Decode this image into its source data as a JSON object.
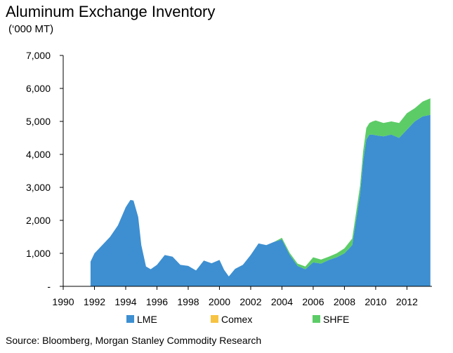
{
  "chart_data": {
    "type": "area",
    "stacked": true,
    "title": "Aluminum Exchange Inventory",
    "subtitle": "(‘000 MT)",
    "xlabel": "",
    "ylabel": "",
    "xlim": [
      1990,
      2013.6
    ],
    "ylim": [
      0,
      7000
    ],
    "x_ticks": [
      "1990",
      "1992",
      "1994",
      "1996",
      "1998",
      "2000",
      "2002",
      "2004",
      "2006",
      "2008",
      "2010",
      "2012"
    ],
    "y_ticks": [
      "-",
      "1,000",
      "2,000",
      "3,000",
      "4,000",
      "5,000",
      "6,000",
      "7,000"
    ],
    "grid": false,
    "legend_position": "bottom",
    "x": [
      1991.75,
      1992.0,
      1992.5,
      1993.0,
      1993.5,
      1994.0,
      1994.3,
      1994.5,
      1994.8,
      1995.0,
      1995.3,
      1995.6,
      1996.0,
      1996.5,
      1997.0,
      1997.5,
      1998.0,
      1998.5,
      1999.0,
      1999.5,
      2000.0,
      2000.3,
      2000.6,
      2001.0,
      2001.5,
      2002.0,
      2002.5,
      2003.0,
      2003.5,
      2004.0,
      2004.5,
      2005.0,
      2005.5,
      2006.0,
      2006.5,
      2007.0,
      2007.5,
      2008.0,
      2008.5,
      2009.0,
      2009.2,
      2009.4,
      2009.6,
      2009.8,
      2010.0,
      2010.5,
      2011.0,
      2011.5,
      2012.0,
      2012.5,
      2013.0,
      2013.5
    ],
    "series": [
      {
        "name": "LME",
        "color": "#3d8fd1",
        "values": [
          750,
          1000,
          1250,
          1500,
          1850,
          2400,
          2620,
          2600,
          2100,
          1250,
          600,
          520,
          650,
          950,
          900,
          650,
          620,
          480,
          780,
          700,
          800,
          500,
          300,
          530,
          650,
          950,
          1300,
          1250,
          1350,
          1420,
          950,
          620,
          520,
          730,
          690,
          800,
          880,
          1000,
          1250,
          2800,
          3800,
          4450,
          4600,
          4600,
          4580,
          4550,
          4600,
          4500,
          4750,
          5000,
          5150,
          5200
        ]
      },
      {
        "name": "Comex",
        "color": "#f6c342",
        "values": [
          0,
          0,
          0,
          0,
          0,
          0,
          0,
          0,
          0,
          0,
          0,
          0,
          0,
          0,
          0,
          0,
          0,
          0,
          0,
          0,
          0,
          0,
          0,
          0,
          0,
          0,
          0,
          0,
          0,
          0,
          0,
          0,
          0,
          0,
          0,
          0,
          0,
          0,
          0,
          0,
          0,
          0,
          0,
          0,
          0,
          0,
          0,
          0,
          0,
          0,
          0,
          0
        ]
      },
      {
        "name": "SHFE",
        "color": "#5ccc67",
        "values": [
          0,
          0,
          0,
          0,
          0,
          0,
          0,
          0,
          0,
          0,
          0,
          0,
          0,
          0,
          0,
          0,
          0,
          0,
          0,
          0,
          0,
          0,
          0,
          0,
          0,
          0,
          0,
          0,
          0,
          50,
          60,
          70,
          80,
          150,
          120,
          100,
          120,
          150,
          200,
          250,
          300,
          350,
          350,
          400,
          450,
          400,
          400,
          450,
          500,
          400,
          450,
          500
        ]
      }
    ],
    "source": "Source: Bloomberg, Morgan Stanley Commodity Research"
  }
}
